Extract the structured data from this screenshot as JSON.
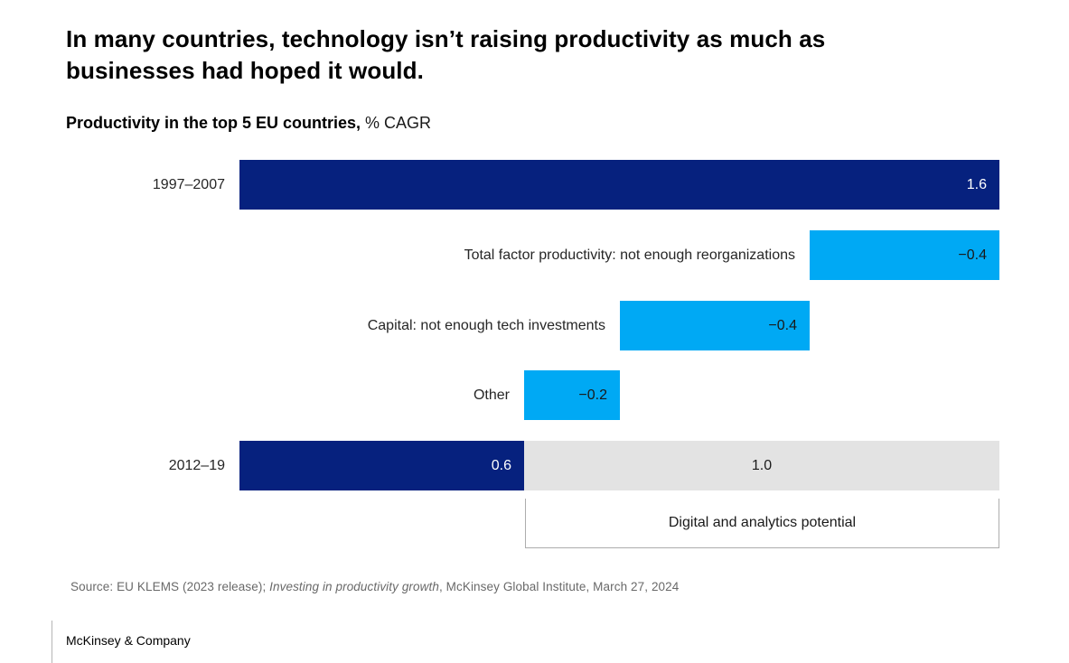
{
  "header": {
    "title_line1": "In many countries, technology isn’t raising productivity as much as",
    "title_line2": "businesses had hoped it would.",
    "subtitle_bold": "Productivity in the top 5 EU countries,",
    "subtitle_regular": " % CAGR"
  },
  "colors": {
    "navy": "#06217E",
    "cyan": "#00A9F4",
    "gray": "#E3E3E3",
    "value_light": "#FFFFFF",
    "value_dark": "#1A1A1A"
  },
  "chart_data": {
    "type": "bar",
    "variant": "horizontal-waterfall",
    "title": "Productivity in the top 5 EU countries, % CAGR",
    "x_range": [
      0,
      1.6
    ],
    "unit": "% CAGR",
    "grid": false,
    "legend": false,
    "rows": [
      {
        "label": "1997–2007",
        "segments": [
          {
            "from": 0,
            "to": 1.6,
            "value_num": 1.6,
            "color": "navy",
            "value": "1.6",
            "value_style": "light",
            "value_pos": "right"
          }
        ]
      },
      {
        "label": "Total factor productivity: not enough reorganizations",
        "segments": [
          {
            "from": 1.2,
            "to": 1.6,
            "value_num": -0.4,
            "color": "cyan",
            "value": "−0.4",
            "value_style": "dark",
            "value_pos": "right"
          }
        ]
      },
      {
        "label": "Capital: not enough tech investments",
        "segments": [
          {
            "from": 0.8,
            "to": 1.2,
            "value_num": -0.4,
            "color": "cyan",
            "value": "−0.4",
            "value_style": "dark",
            "value_pos": "right"
          }
        ]
      },
      {
        "label": "Other",
        "segments": [
          {
            "from": 0.6,
            "to": 0.8,
            "value_num": -0.2,
            "color": "cyan",
            "value": "−0.2",
            "value_style": "dark",
            "value_pos": "right"
          }
        ]
      },
      {
        "label": "2012–19",
        "segments": [
          {
            "from": 0,
            "to": 0.6,
            "value_num": 0.6,
            "color": "navy",
            "value": "0.6",
            "value_style": "light",
            "value_pos": "right"
          },
          {
            "from": 0.6,
            "to": 1.6,
            "value_num": 1.0,
            "color": "gray",
            "value": "1.0",
            "value_style": "dark",
            "value_pos": "center"
          }
        ]
      }
    ],
    "annotation": {
      "label": "Digital and analytics potential",
      "from": 0.6,
      "to": 1.6
    }
  },
  "footer": {
    "source_prefix": "Source: EU KLEMS (2023 release); ",
    "source_italic": "Investing in productivity growth",
    "source_suffix": ", McKinsey Global Institute, March 27, 2024",
    "brand": "McKinsey & Company"
  }
}
